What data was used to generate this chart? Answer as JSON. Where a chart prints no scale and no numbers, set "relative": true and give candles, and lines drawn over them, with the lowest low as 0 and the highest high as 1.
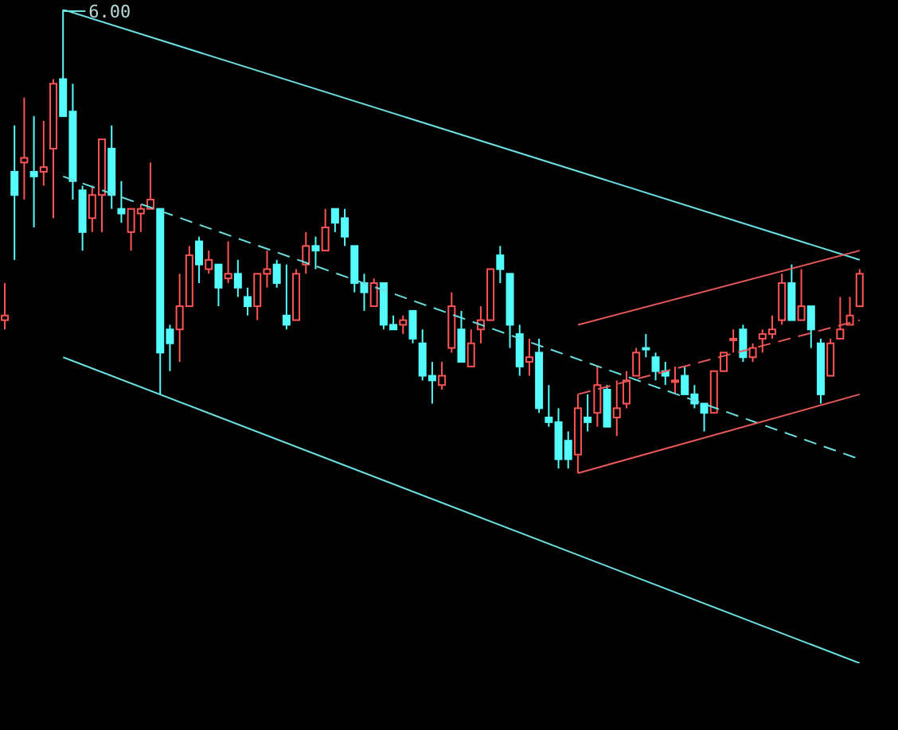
{
  "chart_data": {
    "type": "candlestick",
    "relative": true,
    "categories": [
      null,
      null,
      null,
      null,
      null,
      null,
      null,
      null,
      null,
      null,
      null,
      null,
      null,
      null,
      null,
      null,
      null,
      null,
      null,
      null,
      null,
      null,
      null,
      null,
      null,
      null,
      null,
      null,
      null,
      null,
      null,
      null,
      null,
      null,
      null,
      null,
      null,
      null,
      null,
      null,
      null,
      null,
      null,
      null,
      null,
      null,
      null,
      null,
      null,
      null,
      null,
      null,
      null,
      null,
      null,
      null,
      null,
      null,
      null,
      null,
      null,
      null,
      null,
      null,
      null,
      null,
      null,
      null,
      null,
      null,
      null,
      null,
      null,
      null,
      null,
      null,
      null,
      null,
      null,
      null,
      null,
      null,
      null,
      null,
      null,
      null,
      null,
      null,
      null
    ],
    "ohlc": [
      [
        0.33,
        0.41,
        0.31,
        0.34
      ],
      [
        0.65,
        0.75,
        0.46,
        0.6
      ],
      [
        0.67,
        0.81,
        0.59,
        0.68
      ],
      [
        0.65,
        0.77,
        0.53,
        0.64
      ],
      [
        0.65,
        0.76,
        0.62,
        0.66
      ],
      [
        0.7,
        0.85,
        0.55,
        0.84
      ],
      [
        0.85,
        1,
        0.77,
        0.77
      ],
      [
        0.78,
        0.84,
        0.59,
        0.63
      ],
      [
        0.61,
        0.62,
        0.48,
        0.52
      ],
      [
        0.55,
        0.62,
        0.52,
        0.6
      ],
      [
        0.6,
        0.72,
        0.52,
        0.72
      ],
      [
        0.7,
        0.75,
        0.57,
        0.6
      ],
      [
        0.57,
        0.63,
        0.54,
        0.56
      ],
      [
        0.52,
        0.57,
        0.48,
        0.57
      ],
      [
        0.56,
        0.58,
        0.52,
        0.57
      ],
      [
        0.57,
        0.67,
        0.57,
        0.59
      ],
      [
        0.57,
        0.57,
        0.17,
        0.26
      ],
      [
        0.31,
        0.32,
        0.22,
        0.28
      ],
      [
        0.31,
        0.43,
        0.24,
        0.36
      ],
      [
        0.36,
        0.49,
        0.36,
        0.47
      ],
      [
        0.5,
        0.51,
        0.41,
        0.45
      ],
      [
        0.44,
        0.48,
        0.43,
        0.46
      ],
      [
        0.45,
        0.45,
        0.36,
        0.4
      ],
      [
        0.42,
        0.5,
        0.41,
        0.43
      ],
      [
        0.43,
        0.46,
        0.38,
        0.4
      ],
      [
        0.38,
        0.4,
        0.34,
        0.36
      ],
      [
        0.36,
        0.43,
        0.33,
        0.43
      ],
      [
        0.43,
        0.48,
        0.4,
        0.44
      ],
      [
        0.45,
        0.46,
        0.4,
        0.41
      ],
      [
        0.34,
        0.45,
        0.31,
        0.32
      ],
      [
        0.33,
        0.44,
        0.33,
        0.43
      ],
      [
        0.45,
        0.52,
        0.43,
        0.49
      ],
      [
        0.49,
        0.51,
        0.44,
        0.48
      ],
      [
        0.48,
        0.57,
        0.48,
        0.53
      ],
      [
        0.57,
        0.57,
        0.52,
        0.54
      ],
      [
        0.55,
        0.57,
        0.49,
        0.51
      ],
      [
        0.49,
        0.49,
        0.39,
        0.41
      ],
      [
        0.41,
        0.43,
        0.35,
        0.39
      ],
      [
        0.36,
        0.42,
        0.36,
        0.41
      ],
      [
        0.41,
        0.41,
        0.31,
        0.32
      ],
      [
        0.32,
        0.34,
        0.31,
        0.31
      ],
      [
        0.32,
        0.34,
        0.3,
        0.33
      ],
      [
        0.35,
        0.35,
        0.28,
        0.29
      ],
      [
        0.28,
        0.31,
        0.2,
        0.21
      ],
      [
        0.21,
        0.24,
        0.15,
        0.2
      ],
      [
        0.19,
        0.24,
        0.18,
        0.21
      ],
      [
        0.27,
        0.39,
        0.26,
        0.36
      ],
      [
        0.31,
        0.35,
        0.24,
        0.24
      ],
      [
        0.23,
        0.31,
        0.23,
        0.28
      ],
      [
        0.31,
        0.36,
        0.28,
        0.33
      ],
      [
        0.33,
        0.44,
        0.33,
        0.44
      ],
      [
        0.47,
        0.49,
        0.41,
        0.44
      ],
      [
        0.43,
        0.43,
        0.27,
        0.32
      ],
      [
        0.3,
        0.32,
        0.21,
        0.23
      ],
      [
        0.24,
        0.29,
        0.21,
        0.25
      ],
      [
        0.26,
        0.29,
        0.13,
        0.14
      ],
      [
        0.12,
        0.19,
        0.1,
        0.11
      ],
      [
        0.11,
        0.14,
        0.01,
        0.03
      ],
      [
        0.07,
        0.09,
        0.01,
        0.03
      ],
      [
        0.04,
        0.17,
        0,
        0.14
      ],
      [
        0.12,
        0.17,
        0.09,
        0.11
      ],
      [
        0.13,
        0.23,
        0.1,
        0.19
      ],
      [
        0.18,
        0.19,
        0.1,
        0.1
      ],
      [
        0.12,
        0.2,
        0.08,
        0.14
      ],
      [
        0.15,
        0.22,
        0.14,
        0.2
      ],
      [
        0.21,
        0.27,
        0.21,
        0.26
      ],
      [
        0.27,
        0.3,
        0.25,
        0.27
      ],
      [
        0.25,
        0.26,
        0.2,
        0.22
      ],
      [
        0.22,
        0.24,
        0.19,
        0.21
      ],
      [
        0.2,
        0.23,
        0.17,
        0.2
      ],
      [
        0.21,
        0.23,
        0.17,
        0.17
      ],
      [
        0.17,
        0.19,
        0.14,
        0.15
      ],
      [
        0.15,
        0.15,
        0.09,
        0.13
      ],
      [
        0.13,
        0.22,
        0.13,
        0.22
      ],
      [
        0.22,
        0.26,
        0.22,
        0.26
      ],
      [
        0.29,
        0.31,
        0.26,
        0.29
      ],
      [
        0.31,
        0.32,
        0.24,
        0.25
      ],
      [
        0.25,
        0.28,
        0.24,
        0.27
      ],
      [
        0.29,
        0.31,
        0.26,
        0.3
      ],
      [
        0.3,
        0.34,
        0.29,
        0.31
      ],
      [
        0.33,
        0.43,
        0.32,
        0.41
      ],
      [
        0.41,
        0.45,
        0.33,
        0.33
      ],
      [
        0.33,
        0.44,
        0.33,
        0.36
      ],
      [
        0.36,
        0.36,
        0.27,
        0.31
      ],
      [
        0.28,
        0.29,
        0.15,
        0.17
      ],
      [
        0.21,
        0.29,
        0.21,
        0.28
      ],
      [
        0.29,
        0.38,
        0.29,
        0.31
      ],
      [
        0.32,
        0.38,
        0.32,
        0.34
      ],
      [
        0.36,
        0.44,
        0.36,
        0.43
      ]
    ],
    "colors": [
      "#ff5454",
      "#54fcfc",
      "#ff5454",
      "#54fcfc",
      "#ff5454",
      "#ff5454",
      "#54fcfc",
      "#54fcfc",
      "#54fcfc",
      "#ff5454",
      "#ff5454",
      "#54fcfc",
      "#54fcfc",
      "#ff5454",
      "#ff5454",
      "#ff5454",
      "#54fcfc",
      "#54fcfc",
      "#ff5454",
      "#ff5454",
      "#54fcfc",
      "#ff5454",
      "#54fcfc",
      "#ff5454",
      "#54fcfc",
      "#54fcfc",
      "#ff5454",
      "#ff5454",
      "#54fcfc",
      "#54fcfc",
      "#ff5454",
      "#ff5454",
      "#54fcfc",
      "#ff5454",
      "#54fcfc",
      "#54fcfc",
      "#54fcfc",
      "#54fcfc",
      "#ff5454",
      "#54fcfc",
      "#54fcfc",
      "#ff5454",
      "#54fcfc",
      "#54fcfc",
      "#54fcfc",
      "#ff5454",
      "#ff5454",
      "#54fcfc",
      "#ff5454",
      "#ff5454",
      "#ff5454",
      "#54fcfc",
      "#54fcfc",
      "#54fcfc",
      "#ff5454",
      "#54fcfc",
      "#54fcfc",
      "#54fcfc",
      "#54fcfc",
      "#ff5454",
      "#54fcfc",
      "#ff5454",
      "#54fcfc",
      "#ff5454",
      "#ff5454",
      "#ff5454",
      "#54fcfc",
      "#54fcfc",
      "#54fcfc",
      "#ff5454",
      "#54fcfc",
      "#54fcfc",
      "#54fcfc",
      "#ff5454",
      "#ff5454",
      "#ff5454",
      "#54fcfc",
      "#ff5454",
      "#ff5454",
      "#ff5454",
      "#ff5454",
      "#54fcfc",
      "#ff5454",
      "#54fcfc",
      "#54fcfc",
      "#ff5454",
      "#ff5454",
      "#ff5454",
      "#ff5454"
    ],
    "series": [
      {
        "type": "line",
        "color": "#6ae0e0",
        "line_style": "solid",
        "values": [
          null,
          null,
          null,
          null,
          null,
          null,
          1,
          null,
          null,
          null,
          null,
          null,
          null,
          null,
          null,
          null,
          null,
          null,
          null,
          null,
          null,
          null,
          null,
          null,
          null,
          null,
          null,
          null,
          null,
          null,
          null,
          null,
          null,
          null,
          null,
          null,
          null,
          null,
          null,
          null,
          null,
          null,
          null,
          null,
          null,
          null,
          null,
          null,
          null,
          null,
          null,
          null,
          null,
          null,
          null,
          null,
          null,
          null,
          null,
          null,
          null,
          null,
          null,
          null,
          null,
          null,
          null,
          null,
          null,
          null,
          null,
          null,
          null,
          null,
          null,
          null,
          null,
          null,
          null,
          null,
          null,
          null,
          null,
          null,
          null,
          null,
          null,
          null,
          0.46
        ]
      },
      {
        "type": "line",
        "color": "#6ae0e0",
        "line_style": "dashed",
        "values": [
          null,
          null,
          null,
          null,
          null,
          null,
          0.64,
          null,
          null,
          null,
          null,
          null,
          null,
          null,
          null,
          null,
          null,
          null,
          null,
          null,
          null,
          null,
          null,
          null,
          null,
          null,
          null,
          null,
          null,
          null,
          null,
          null,
          null,
          null,
          null,
          null,
          null,
          null,
          null,
          null,
          null,
          null,
          null,
          null,
          null,
          null,
          null,
          null,
          null,
          null,
          null,
          null,
          null,
          null,
          null,
          null,
          null,
          null,
          null,
          null,
          null,
          null,
          null,
          null,
          null,
          null,
          null,
          null,
          null,
          null,
          null,
          null,
          null,
          null,
          null,
          null,
          null,
          null,
          null,
          null,
          null,
          null,
          null,
          null,
          null,
          null,
          null,
          null,
          0.03
        ]
      },
      {
        "type": "line",
        "color": "#6ae0e0",
        "line_style": "solid",
        "values": [
          null,
          null,
          null,
          null,
          null,
          null,
          0.25,
          null,
          null,
          null,
          null,
          null,
          null,
          null,
          null,
          null,
          null,
          null,
          null,
          null,
          null,
          null,
          null,
          null,
          null,
          null,
          null,
          null,
          null,
          null,
          null,
          null,
          null,
          null,
          null,
          null,
          null,
          null,
          null,
          null,
          null,
          null,
          null,
          null,
          null,
          null,
          null,
          null,
          null,
          null,
          null,
          null,
          null,
          null,
          null,
          null,
          null,
          null,
          null,
          null,
          null,
          null,
          null,
          null,
          null,
          null,
          null,
          null,
          null,
          null,
          null,
          null,
          null,
          null,
          null,
          null,
          null,
          null,
          null,
          null,
          null,
          null,
          null,
          null,
          null,
          null,
          null,
          null,
          -0.41
        ]
      },
      {
        "type": "line",
        "color": "#e85858",
        "line_style": "solid",
        "values": [
          null,
          null,
          null,
          null,
          null,
          null,
          null,
          null,
          null,
          null,
          null,
          null,
          null,
          null,
          null,
          null,
          null,
          null,
          null,
          null,
          null,
          null,
          null,
          null,
          null,
          null,
          null,
          null,
          null,
          null,
          null,
          null,
          null,
          null,
          null,
          null,
          null,
          null,
          null,
          null,
          null,
          null,
          null,
          null,
          null,
          null,
          null,
          null,
          null,
          null,
          null,
          null,
          null,
          null,
          null,
          null,
          null,
          null,
          null,
          0.32,
          null,
          null,
          null,
          null,
          null,
          null,
          null,
          null,
          null,
          null,
          null,
          null,
          null,
          null,
          null,
          null,
          null,
          null,
          null,
          null,
          null,
          null,
          null,
          null,
          null,
          null,
          null,
          null,
          0.48
        ]
      },
      {
        "type": "line",
        "color": "#e85858",
        "line_style": "dashed",
        "values": [
          null,
          null,
          null,
          null,
          null,
          null,
          null,
          null,
          null,
          null,
          null,
          null,
          null,
          null,
          null,
          null,
          null,
          null,
          null,
          null,
          null,
          null,
          null,
          null,
          null,
          null,
          null,
          null,
          null,
          null,
          null,
          null,
          null,
          null,
          null,
          null,
          null,
          null,
          null,
          null,
          null,
          null,
          null,
          null,
          null,
          null,
          null,
          null,
          null,
          null,
          null,
          null,
          null,
          null,
          null,
          null,
          null,
          null,
          null,
          0.17,
          null,
          null,
          null,
          null,
          null,
          null,
          null,
          null,
          null,
          null,
          null,
          null,
          null,
          null,
          null,
          null,
          null,
          null,
          null,
          null,
          null,
          null,
          null,
          null,
          null,
          null,
          null,
          null,
          0.33
        ]
      },
      {
        "type": "line",
        "color": "#e85858",
        "line_style": "solid",
        "values": [
          null,
          null,
          null,
          null,
          null,
          null,
          null,
          null,
          null,
          null,
          null,
          null,
          null,
          null,
          null,
          null,
          null,
          null,
          null,
          null,
          null,
          null,
          null,
          null,
          null,
          null,
          null,
          null,
          null,
          null,
          null,
          null,
          null,
          null,
          null,
          null,
          null,
          null,
          null,
          null,
          null,
          null,
          null,
          null,
          null,
          null,
          null,
          null,
          null,
          null,
          null,
          null,
          null,
          null,
          null,
          null,
          null,
          null,
          null,
          0,
          null,
          null,
          null,
          null,
          null,
          null,
          null,
          null,
          null,
          null,
          null,
          null,
          null,
          null,
          null,
          null,
          null,
          null,
          null,
          null,
          null,
          null,
          null,
          null,
          null,
          null,
          null,
          null,
          0.17
        ]
      }
    ],
    "annotations": [
      "6.00"
    ]
  }
}
